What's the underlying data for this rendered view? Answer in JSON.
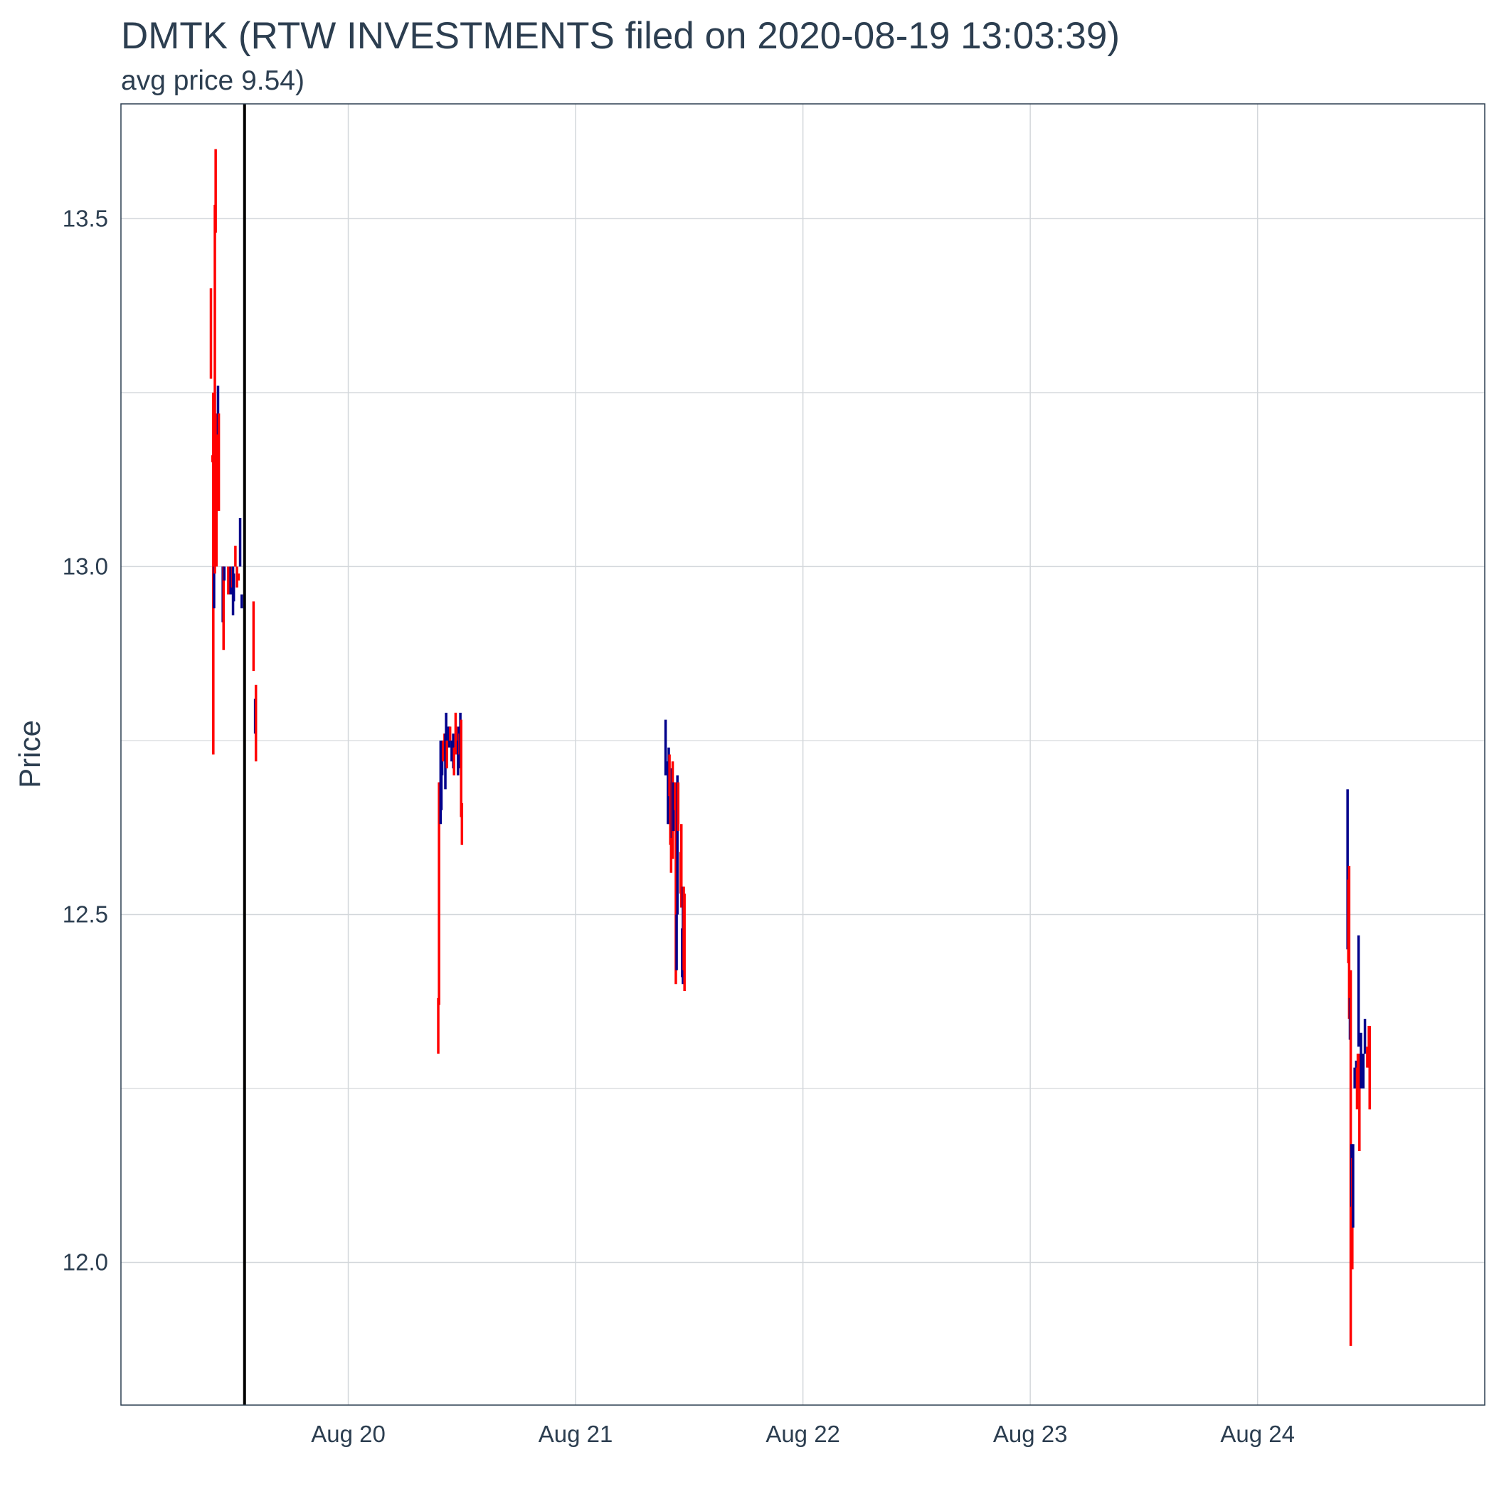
{
  "chart_data": {
    "type": "ohlc",
    "title": "DMTK (RTW INVESTMENTS filed on 2020-08-19 13:03:39)",
    "subtitle": "avg price 9.54)",
    "xlabel": "",
    "ylabel": "Price",
    "x_range": [
      "2020-08-19 00:00",
      "2020-08-24 23:59"
    ],
    "ylim": [
      11.795,
      13.665
    ],
    "y_ticks": [
      12.0,
      12.5,
      13.0,
      13.5
    ],
    "y_tick_labels": [
      "12.0",
      "12.5",
      "13.0",
      "13.5"
    ],
    "x_ticks": [
      "2020-08-20",
      "2020-08-21",
      "2020-08-22",
      "2020-08-23",
      "2020-08-24"
    ],
    "x_tick_labels": [
      "Aug 20",
      "Aug 21",
      "Aug 22",
      "Aug 23",
      "Aug 24"
    ],
    "grid": true,
    "filing_time": "2020-08-19 13:03:39",
    "colors": {
      "up": "#00008b",
      "down": "#ff0000",
      "filing_line": "#000000",
      "grid": "#d3d7db",
      "panel_border": "#2c3e50",
      "text": "#2c3e50"
    },
    "bars": [
      {
        "t": "2020-08-19 09:30",
        "low": 13.27,
        "high": 13.4,
        "color": "down"
      },
      {
        "t": "2020-08-19 09:40",
        "low": 13.15,
        "high": 13.16,
        "color": "down"
      },
      {
        "t": "2020-08-19 09:45",
        "low": 12.73,
        "high": 13.25,
        "color": "down"
      },
      {
        "t": "2020-08-19 09:50",
        "low": 12.94,
        "high": 13.0,
        "color": "up"
      },
      {
        "t": "2020-08-19 09:55",
        "low": 12.99,
        "high": 13.52,
        "color": "down"
      },
      {
        "t": "2020-08-19 10:00",
        "low": 13.48,
        "high": 13.6,
        "color": "down"
      },
      {
        "t": "2020-08-19 10:05",
        "low": 13.0,
        "high": 13.22,
        "color": "down"
      },
      {
        "t": "2020-08-19 10:15",
        "low": 13.19,
        "high": 13.26,
        "color": "up"
      },
      {
        "t": "2020-08-19 10:20",
        "low": 13.08,
        "high": 13.22,
        "color": "down"
      },
      {
        "t": "2020-08-19 10:45",
        "low": 12.92,
        "high": 13.0,
        "color": "up"
      },
      {
        "t": "2020-08-19 10:50",
        "low": 12.88,
        "high": 13.0,
        "color": "down"
      },
      {
        "t": "2020-08-19 10:55",
        "low": 12.98,
        "high": 13.0,
        "color": "up"
      },
      {
        "t": "2020-08-19 11:20",
        "low": 12.96,
        "high": 13.0,
        "color": "down"
      },
      {
        "t": "2020-08-19 11:35",
        "low": 12.96,
        "high": 13.0,
        "color": "up"
      },
      {
        "t": "2020-08-19 11:45",
        "low": 12.97,
        "high": 13.0,
        "color": "down"
      },
      {
        "t": "2020-08-19 11:50",
        "low": 12.93,
        "high": 13.0,
        "color": "up"
      },
      {
        "t": "2020-08-19 11:55",
        "low": 12.95,
        "high": 12.99,
        "color": "up"
      },
      {
        "t": "2020-08-19 12:05",
        "low": 13.0,
        "high": 13.03,
        "color": "down"
      },
      {
        "t": "2020-08-19 12:15",
        "low": 12.97,
        "high": 13.0,
        "color": "down"
      },
      {
        "t": "2020-08-19 12:25",
        "low": 12.98,
        "high": 12.99,
        "color": "down"
      },
      {
        "t": "2020-08-19 12:35",
        "low": 13.0,
        "high": 13.07,
        "color": "up"
      },
      {
        "t": "2020-08-19 12:45",
        "low": 12.94,
        "high": 12.96,
        "color": "up"
      },
      {
        "t": "2020-08-19 14:00",
        "low": 12.85,
        "high": 12.95,
        "color": "down"
      },
      {
        "t": "2020-08-19 14:10",
        "low": 12.76,
        "high": 12.81,
        "color": "up"
      },
      {
        "t": "2020-08-19 14:15",
        "low": 12.72,
        "high": 12.83,
        "color": "down"
      },
      {
        "t": "2020-08-20 09:30",
        "low": 12.3,
        "high": 12.38,
        "color": "down"
      },
      {
        "t": "2020-08-20 09:35",
        "low": 12.37,
        "high": 12.69,
        "color": "down"
      },
      {
        "t": "2020-08-20 09:40",
        "low": 12.67,
        "high": 12.69,
        "color": "down"
      },
      {
        "t": "2020-08-20 09:45",
        "low": 12.63,
        "high": 12.75,
        "color": "up"
      },
      {
        "t": "2020-08-20 09:50",
        "low": 12.65,
        "high": 12.7,
        "color": "up"
      },
      {
        "t": "2020-08-20 09:55",
        "low": 12.7,
        "high": 12.75,
        "color": "up"
      },
      {
        "t": "2020-08-20 10:00",
        "low": 12.72,
        "high": 12.75,
        "color": "down"
      },
      {
        "t": "2020-08-20 10:05",
        "low": 12.74,
        "high": 12.75,
        "color": "down"
      },
      {
        "t": "2020-08-20 10:10",
        "low": 12.73,
        "high": 12.76,
        "color": "down"
      },
      {
        "t": "2020-08-20 10:15",
        "low": 12.68,
        "high": 12.76,
        "color": "up"
      },
      {
        "t": "2020-08-20 10:20",
        "low": 12.72,
        "high": 12.79,
        "color": "up"
      },
      {
        "t": "2020-08-20 10:25",
        "low": 12.71,
        "high": 12.75,
        "color": "down"
      },
      {
        "t": "2020-08-20 10:35",
        "low": 12.75,
        "high": 12.77,
        "color": "up"
      },
      {
        "t": "2020-08-20 10:40",
        "low": 12.74,
        "high": 12.77,
        "color": "up"
      },
      {
        "t": "2020-08-20 10:45",
        "low": 12.75,
        "high": 12.77,
        "color": "down"
      },
      {
        "t": "2020-08-20 10:55",
        "low": 12.72,
        "high": 12.75,
        "color": "up"
      },
      {
        "t": "2020-08-20 11:05",
        "low": 12.71,
        "high": 12.76,
        "color": "up"
      },
      {
        "t": "2020-08-20 11:10",
        "low": 12.7,
        "high": 12.74,
        "color": "down"
      },
      {
        "t": "2020-08-20 11:20",
        "low": 12.74,
        "high": 12.79,
        "color": "down"
      },
      {
        "t": "2020-08-20 11:25",
        "low": 12.73,
        "high": 12.77,
        "color": "down"
      },
      {
        "t": "2020-08-20 11:35",
        "low": 12.7,
        "high": 12.75,
        "color": "up"
      },
      {
        "t": "2020-08-20 11:40",
        "low": 12.72,
        "high": 12.77,
        "color": "up"
      },
      {
        "t": "2020-08-20 11:45",
        "low": 12.73,
        "high": 12.76,
        "color": "down"
      },
      {
        "t": "2020-08-20 11:50",
        "low": 12.71,
        "high": 12.79,
        "color": "up"
      },
      {
        "t": "2020-08-20 11:55",
        "low": 12.64,
        "high": 12.78,
        "color": "down"
      },
      {
        "t": "2020-08-20 12:00",
        "low": 12.6,
        "high": 12.66,
        "color": "down"
      },
      {
        "t": "2020-08-21 09:30",
        "low": 12.7,
        "high": 12.78,
        "color": "up"
      },
      {
        "t": "2020-08-21 09:45",
        "low": 12.63,
        "high": 12.72,
        "color": "up"
      },
      {
        "t": "2020-08-21 09:50",
        "low": 12.63,
        "high": 12.74,
        "color": "up"
      },
      {
        "t": "2020-08-21 09:55",
        "low": 12.67,
        "high": 12.73,
        "color": "down"
      },
      {
        "t": "2020-08-21 10:00",
        "low": 12.6,
        "high": 12.69,
        "color": "down"
      },
      {
        "t": "2020-08-21 10:05",
        "low": 12.56,
        "high": 12.62,
        "color": "down"
      },
      {
        "t": "2020-08-21 10:10",
        "low": 12.61,
        "high": 12.71,
        "color": "up"
      },
      {
        "t": "2020-08-21 10:15",
        "low": 12.58,
        "high": 12.72,
        "color": "down"
      },
      {
        "t": "2020-08-21 10:20",
        "low": 12.62,
        "high": 12.69,
        "color": "up"
      },
      {
        "t": "2020-08-21 10:30",
        "low": 12.65,
        "high": 12.69,
        "color": "down"
      },
      {
        "t": "2020-08-21 10:35",
        "low": 12.4,
        "high": 12.66,
        "color": "down"
      },
      {
        "t": "2020-08-21 10:40",
        "low": 12.42,
        "high": 12.5,
        "color": "up"
      },
      {
        "t": "2020-08-21 10:45",
        "low": 12.5,
        "high": 12.7,
        "color": "up"
      },
      {
        "t": "2020-08-21 10:50",
        "low": 12.62,
        "high": 12.69,
        "color": "down"
      },
      {
        "t": "2020-08-21 11:05",
        "low": 12.53,
        "high": 12.59,
        "color": "down"
      },
      {
        "t": "2020-08-21 11:10",
        "low": 12.51,
        "high": 12.63,
        "color": "down"
      },
      {
        "t": "2020-08-21 11:15",
        "low": 12.41,
        "high": 12.48,
        "color": "up"
      },
      {
        "t": "2020-08-21 11:20",
        "low": 12.4,
        "high": 12.54,
        "color": "up"
      },
      {
        "t": "2020-08-21 11:25",
        "low": 12.42,
        "high": 12.54,
        "color": "down"
      },
      {
        "t": "2020-08-21 11:30",
        "low": 12.39,
        "high": 12.53,
        "color": "down"
      },
      {
        "t": "2020-08-24 09:30",
        "low": 12.45,
        "high": 12.68,
        "color": "up"
      },
      {
        "t": "2020-08-24 09:35",
        "low": 12.43,
        "high": 12.55,
        "color": "down"
      },
      {
        "t": "2020-08-24 09:40",
        "low": 12.35,
        "high": 12.57,
        "color": "down"
      },
      {
        "t": "2020-08-24 09:45",
        "low": 12.32,
        "high": 12.38,
        "color": "up"
      },
      {
        "t": "2020-08-24 09:50",
        "low": 11.88,
        "high": 12.42,
        "color": "down"
      },
      {
        "t": "2020-08-24 09:55",
        "low": 12.08,
        "high": 12.17,
        "color": "up"
      },
      {
        "t": "2020-08-24 10:00",
        "low": 11.99,
        "high": 12.15,
        "color": "down"
      },
      {
        "t": "2020-08-24 10:05",
        "low": 12.05,
        "high": 12.17,
        "color": "up"
      },
      {
        "t": "2020-08-24 10:15",
        "low": 12.25,
        "high": 12.28,
        "color": "up"
      },
      {
        "t": "2020-08-24 10:25",
        "low": 12.25,
        "high": 12.29,
        "color": "up"
      },
      {
        "t": "2020-08-24 10:30",
        "low": 12.22,
        "high": 12.28,
        "color": "down"
      },
      {
        "t": "2020-08-24 10:35",
        "low": 12.25,
        "high": 12.3,
        "color": "down"
      },
      {
        "t": "2020-08-24 10:40",
        "low": 12.31,
        "high": 12.47,
        "color": "up"
      },
      {
        "t": "2020-08-24 10:45",
        "low": 12.16,
        "high": 12.3,
        "color": "down"
      },
      {
        "t": "2020-08-24 10:55",
        "low": 12.25,
        "high": 12.33,
        "color": "up"
      },
      {
        "t": "2020-08-24 11:10",
        "low": 12.25,
        "high": 12.3,
        "color": "up"
      },
      {
        "t": "2020-08-24 11:20",
        "low": 12.3,
        "high": 12.35,
        "color": "up"
      },
      {
        "t": "2020-08-24 11:35",
        "low": 12.28,
        "high": 12.31,
        "color": "down"
      },
      {
        "t": "2020-08-24 11:45",
        "low": 12.28,
        "high": 12.34,
        "color": "down"
      },
      {
        "t": "2020-08-24 11:50",
        "low": 12.22,
        "high": 12.34,
        "color": "down"
      }
    ]
  }
}
